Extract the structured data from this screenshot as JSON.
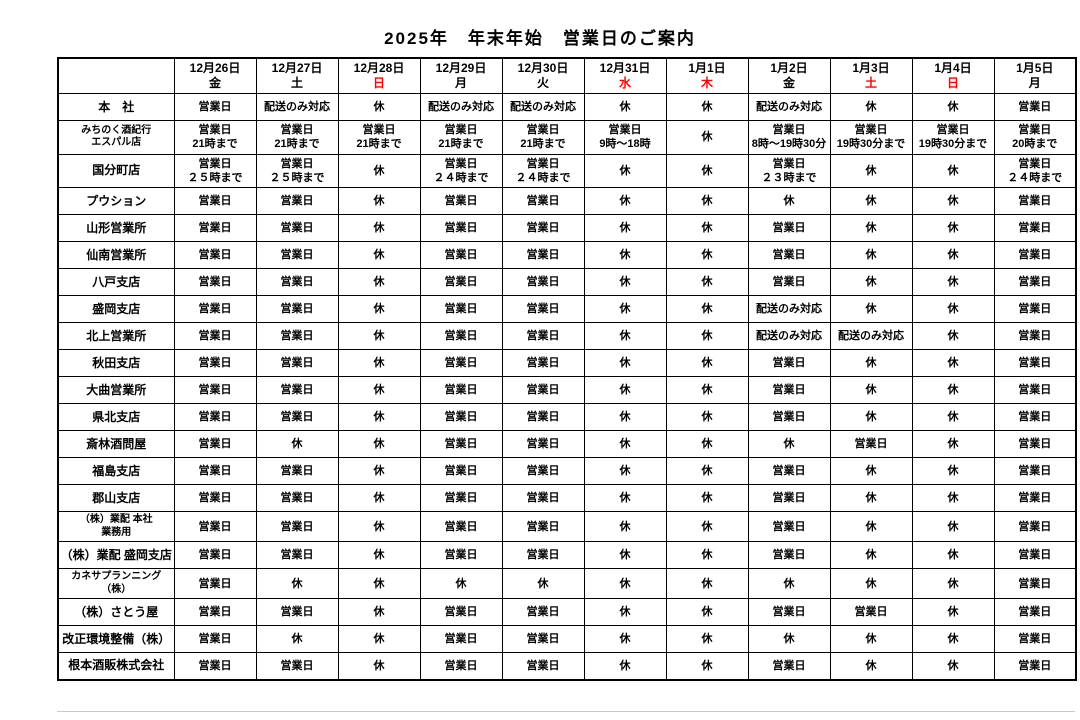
{
  "page": {
    "title": "2025年　年末年始　営業日のご案内"
  },
  "colors": {
    "holiday_red": "#ff0000",
    "text": "#000000",
    "border": "#000000"
  },
  "table": {
    "corner_label": "",
    "columns": [
      {
        "date": "12月26日",
        "dow": "金",
        "red": false
      },
      {
        "date": "12月27日",
        "dow": "土",
        "red": false
      },
      {
        "date": "12月28日",
        "dow": "日",
        "red": true
      },
      {
        "date": "12月29日",
        "dow": "月",
        "red": false
      },
      {
        "date": "12月30日",
        "dow": "火",
        "red": false
      },
      {
        "date": "12月31日",
        "dow": "水",
        "red": true
      },
      {
        "date": "1月1日",
        "dow": "木",
        "red": true
      },
      {
        "date": "1月2日",
        "dow": "金",
        "red": false
      },
      {
        "date": "1月3日",
        "dow": "土",
        "red": true
      },
      {
        "date": "1月4日",
        "dow": "日",
        "red": true
      },
      {
        "date": "1月5日",
        "dow": "月",
        "red": false
      }
    ],
    "rows": [
      {
        "name": "本　社",
        "cells": [
          "営業日",
          "配送のみ対応",
          "休",
          "配送のみ対応",
          "配送のみ対応",
          "休",
          "休",
          "配送のみ対応",
          "休",
          "休",
          "営業日"
        ]
      },
      {
        "name": "みちのく酒紀行\nエスパル店",
        "cells": [
          "営業日\n21時まで",
          "営業日\n21時まで",
          "営業日\n21時まで",
          "営業日\n21時まで",
          "営業日\n21時まで",
          "営業日\n9時～18時",
          "休",
          "営業日\n8時～19時30分",
          "営業日\n19時30分まで",
          "営業日\n19時30分まで",
          "営業日\n20時まで"
        ]
      },
      {
        "name": "国分町店",
        "cells": [
          "営業日\n２５時まで",
          "営業日\n２５時まで",
          "休",
          "営業日\n２４時まで",
          "営業日\n２４時まで",
          "休",
          "休",
          "営業日\n２３時まで",
          "休",
          "休",
          "営業日\n２４時まで"
        ]
      },
      {
        "name": "プウション",
        "cells": [
          "営業日",
          "営業日",
          "休",
          "営業日",
          "営業日",
          "休",
          "休",
          "休",
          "休",
          "休",
          "営業日"
        ]
      },
      {
        "name": "山形営業所",
        "cells": [
          "営業日",
          "営業日",
          "休",
          "営業日",
          "営業日",
          "休",
          "休",
          "営業日",
          "休",
          "休",
          "営業日"
        ]
      },
      {
        "name": "仙南営業所",
        "cells": [
          "営業日",
          "営業日",
          "休",
          "営業日",
          "営業日",
          "休",
          "休",
          "営業日",
          "休",
          "休",
          "営業日"
        ]
      },
      {
        "name": "八戸支店",
        "cells": [
          "営業日",
          "営業日",
          "休",
          "営業日",
          "営業日",
          "休",
          "休",
          "営業日",
          "休",
          "休",
          "営業日"
        ]
      },
      {
        "name": "盛岡支店",
        "cells": [
          "営業日",
          "営業日",
          "休",
          "営業日",
          "営業日",
          "休",
          "休",
          "配送のみ対応",
          "休",
          "休",
          "営業日"
        ]
      },
      {
        "name": "北上営業所",
        "cells": [
          "営業日",
          "営業日",
          "休",
          "営業日",
          "営業日",
          "休",
          "休",
          "配送のみ対応",
          "配送のみ対応",
          "休",
          "営業日"
        ]
      },
      {
        "name": "秋田支店",
        "cells": [
          "営業日",
          "営業日",
          "休",
          "営業日",
          "営業日",
          "休",
          "休",
          "営業日",
          "休",
          "休",
          "営業日"
        ]
      },
      {
        "name": "大曲営業所",
        "cells": [
          "営業日",
          "営業日",
          "休",
          "営業日",
          "営業日",
          "休",
          "休",
          "営業日",
          "休",
          "休",
          "営業日"
        ]
      },
      {
        "name": "県北支店",
        "cells": [
          "営業日",
          "営業日",
          "休",
          "営業日",
          "営業日",
          "休",
          "休",
          "営業日",
          "休",
          "休",
          "営業日"
        ]
      },
      {
        "name": "斎林酒問屋",
        "cells": [
          "営業日",
          "休",
          "休",
          "営業日",
          "営業日",
          "休",
          "休",
          "休",
          "営業日",
          "休",
          "営業日"
        ]
      },
      {
        "name": "福島支店",
        "cells": [
          "営業日",
          "営業日",
          "休",
          "営業日",
          "営業日",
          "休",
          "休",
          "営業日",
          "休",
          "休",
          "営業日"
        ]
      },
      {
        "name": "郡山支店",
        "cells": [
          "営業日",
          "営業日",
          "休",
          "営業日",
          "営業日",
          "休",
          "休",
          "営業日",
          "休",
          "休",
          "営業日"
        ]
      },
      {
        "name": "（株）業配 本社\n業務用",
        "cells": [
          "営業日",
          "営業日",
          "休",
          "営業日",
          "営業日",
          "休",
          "休",
          "営業日",
          "休",
          "休",
          "営業日"
        ]
      },
      {
        "name": "（株）業配 盛岡支店",
        "cells": [
          "営業日",
          "営業日",
          "休",
          "営業日",
          "営業日",
          "休",
          "休",
          "営業日",
          "休",
          "休",
          "営業日"
        ]
      },
      {
        "name": "カネサプランニング（株）",
        "cells": [
          "営業日",
          "休",
          "休",
          "休",
          "休",
          "休",
          "休",
          "休",
          "休",
          "休",
          "営業日"
        ]
      },
      {
        "name": "（株）さとう屋",
        "cells": [
          "営業日",
          "営業日",
          "休",
          "営業日",
          "営業日",
          "休",
          "休",
          "営業日",
          "営業日",
          "休",
          "営業日"
        ]
      },
      {
        "name": "改正環境整備（株）",
        "cells": [
          "営業日",
          "休",
          "休",
          "営業日",
          "営業日",
          "休",
          "休",
          "休",
          "休",
          "休",
          "営業日"
        ]
      },
      {
        "name": "根本酒販株式会社",
        "cells": [
          "営業日",
          "営業日",
          "休",
          "営業日",
          "営業日",
          "休",
          "休",
          "営業日",
          "休",
          "休",
          "営業日"
        ]
      }
    ]
  }
}
